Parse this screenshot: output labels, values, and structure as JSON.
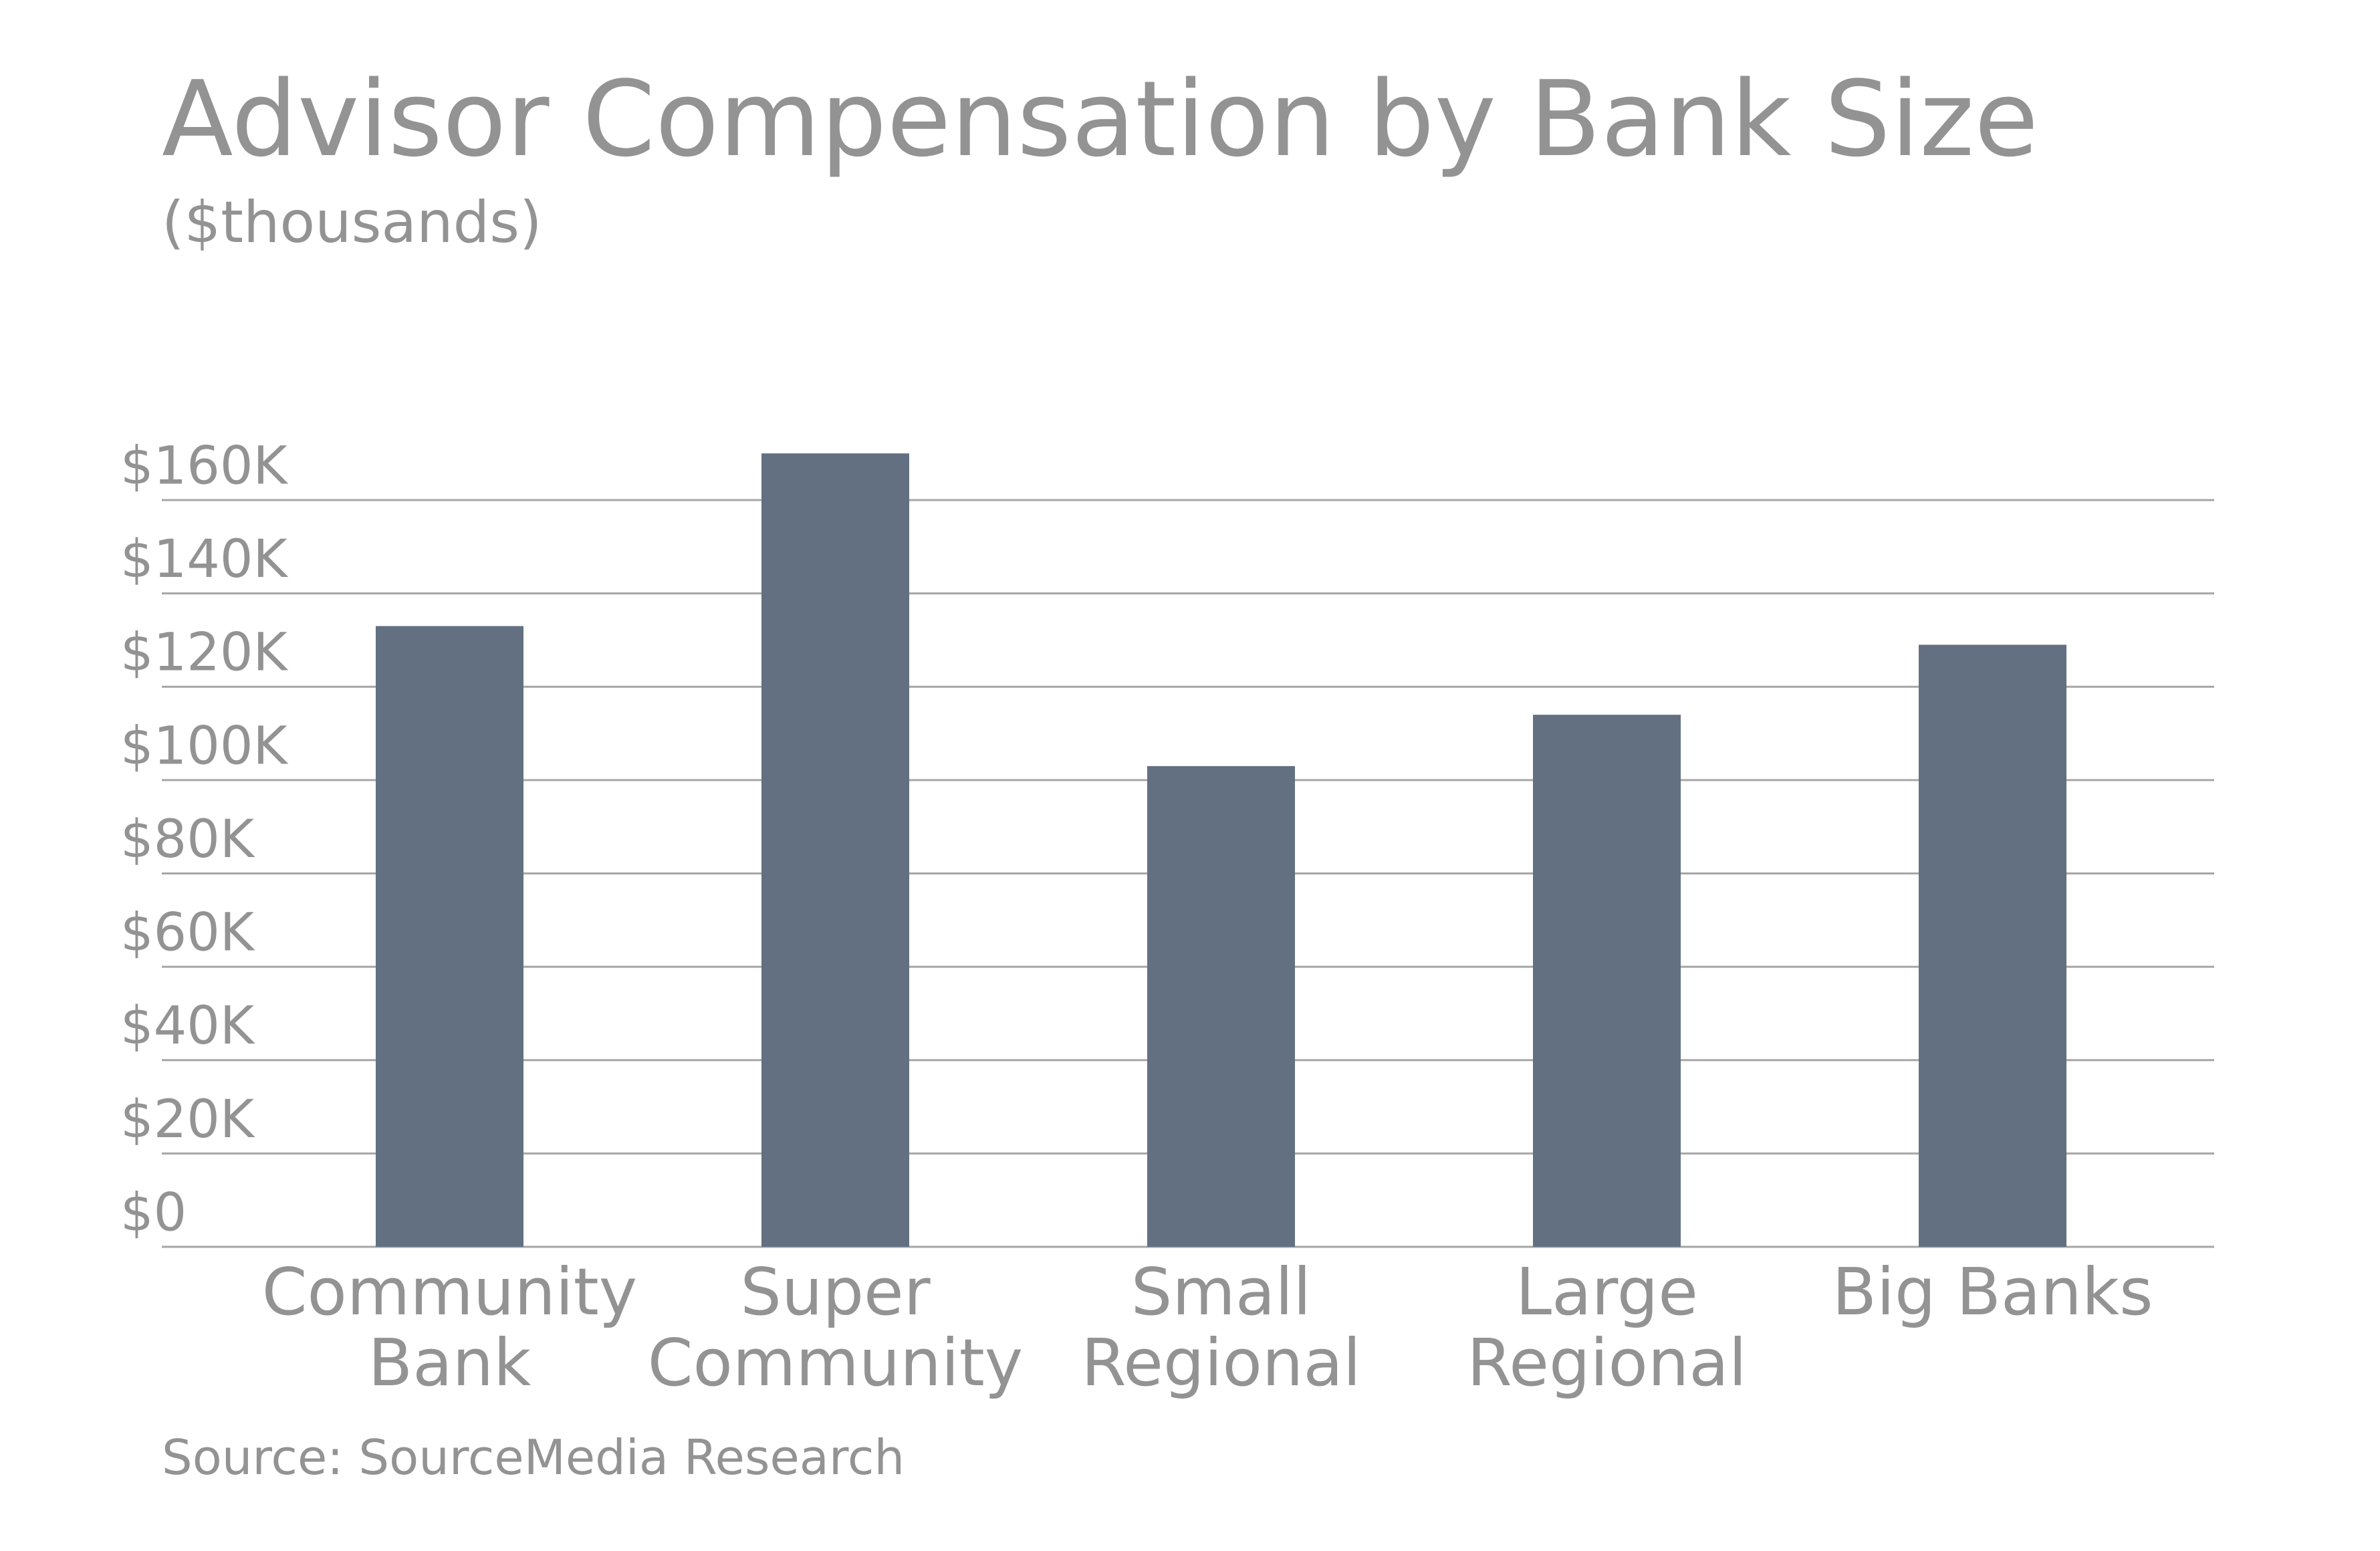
{
  "chart_data": {
    "type": "bar",
    "title": "Advisor Compensation by Bank Size",
    "subtitle": "($thousands)",
    "categories": [
      "Community Bank",
      "Super Community",
      "Small Regional",
      "Large Regional",
      "Big Banks"
    ],
    "values": [
      133,
      170,
      103,
      114,
      129
    ],
    "color": "#627082",
    "ylim": [
      0,
      160
    ],
    "yticks": [
      {
        "value": 0,
        "label": "$0"
      },
      {
        "value": 20,
        "label": "$20K"
      },
      {
        "value": 40,
        "label": "$40K"
      },
      {
        "value": 60,
        "label": "$60K"
      },
      {
        "value": 80,
        "label": "$80K"
      },
      {
        "value": 100,
        "label": "$100K"
      },
      {
        "value": 120,
        "label": "$120K"
      },
      {
        "value": 140,
        "label": "$140K"
      },
      {
        "value": 160,
        "label": "$160K"
      }
    ],
    "grid": true,
    "source": "Source: SourceMedia Research"
  }
}
